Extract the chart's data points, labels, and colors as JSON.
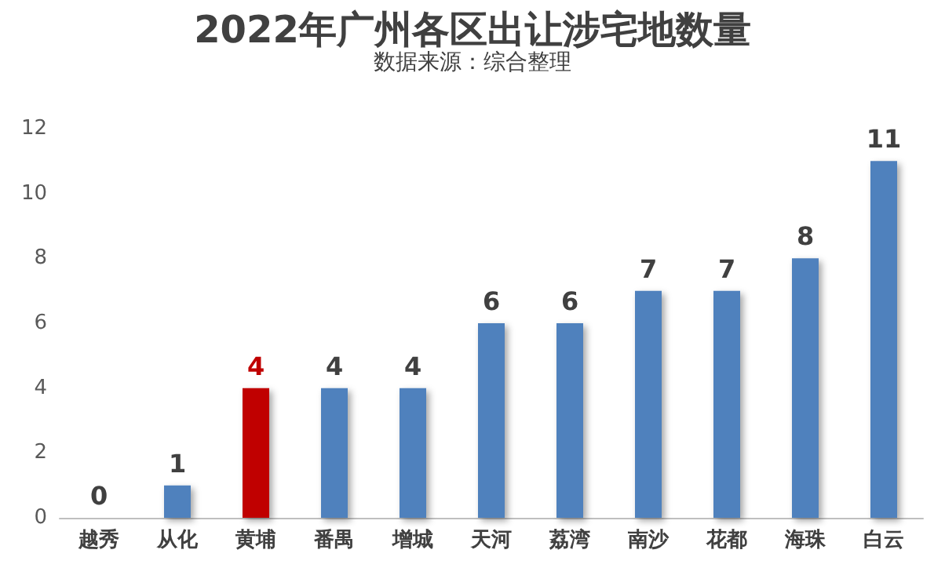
{
  "chart_data": {
    "type": "bar",
    "title": "2022年广州各区出让涉宅地数量",
    "subtitle": "数据来源：综合整理",
    "categories": [
      "越秀",
      "从化",
      "黄埔",
      "番禺",
      "增城",
      "天河",
      "荔湾",
      "南沙",
      "花都",
      "海珠",
      "白云"
    ],
    "values": [
      0,
      1,
      4,
      4,
      4,
      6,
      6,
      7,
      7,
      8,
      11
    ],
    "colors": [
      "#4f81bd",
      "#4f81bd",
      "#c00000",
      "#4f81bd",
      "#4f81bd",
      "#4f81bd",
      "#4f81bd",
      "#4f81bd",
      "#4f81bd",
      "#4f81bd",
      "#4f81bd"
    ],
    "ylim": [
      0,
      12
    ],
    "yticks": [
      0,
      2,
      4,
      6,
      8,
      10,
      12
    ],
    "grid": false,
    "data_labels": true
  }
}
